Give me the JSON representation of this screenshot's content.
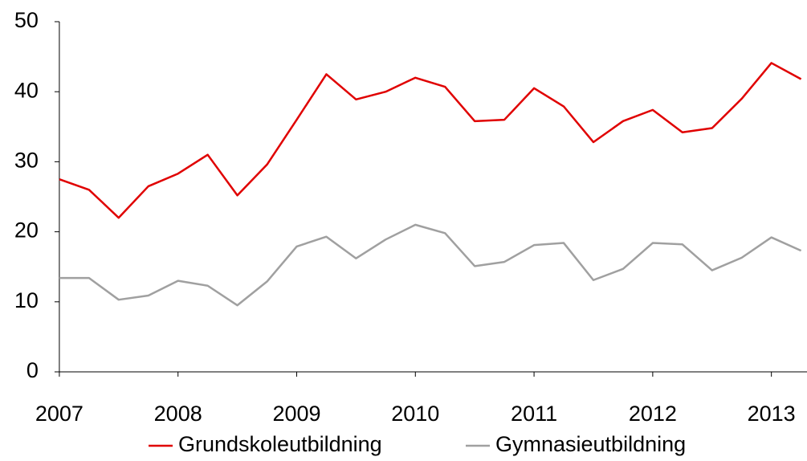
{
  "chart_data": {
    "type": "line",
    "x": [
      2007,
      2007.25,
      2007.5,
      2007.75,
      2008,
      2008.25,
      2008.5,
      2008.75,
      2009,
      2009.25,
      2009.5,
      2009.75,
      2010,
      2010.25,
      2010.5,
      2010.75,
      2011,
      2011.25,
      2011.5,
      2011.75,
      2012,
      2012.25,
      2012.5,
      2012.75,
      2013,
      2013.25
    ],
    "series": [
      {
        "name": "Grundskoleutbildning",
        "color": "#e00000",
        "values": [
          27.5,
          26,
          22,
          26.5,
          28.3,
          31,
          25.2,
          29.6,
          36,
          42.5,
          38.9,
          40,
          42,
          40.7,
          35.8,
          36,
          40.5,
          37.9,
          32.8,
          35.8,
          37.4,
          34.2,
          34.8,
          39,
          44.1,
          41.8
        ]
      },
      {
        "name": "Gymnasieutbildning",
        "color": "#a0a0a0",
        "values": [
          13.4,
          13.4,
          10.3,
          10.9,
          13,
          12.3,
          9.5,
          12.9,
          17.9,
          19.3,
          16.2,
          18.9,
          21,
          19.8,
          15.1,
          15.7,
          18.1,
          18.4,
          13.1,
          14.7,
          18.4,
          18.2,
          14.5,
          16.3,
          19.2,
          17.3
        ]
      }
    ],
    "xlim": [
      2006.96,
      2013.3
    ],
    "xticks": [
      2007,
      2008,
      2009,
      2010,
      2011,
      2012,
      2013
    ],
    "ylim": [
      0,
      50
    ],
    "yticks": [
      0,
      10,
      20,
      30,
      40,
      50
    ],
    "grid": false,
    "legend": "bottom"
  }
}
